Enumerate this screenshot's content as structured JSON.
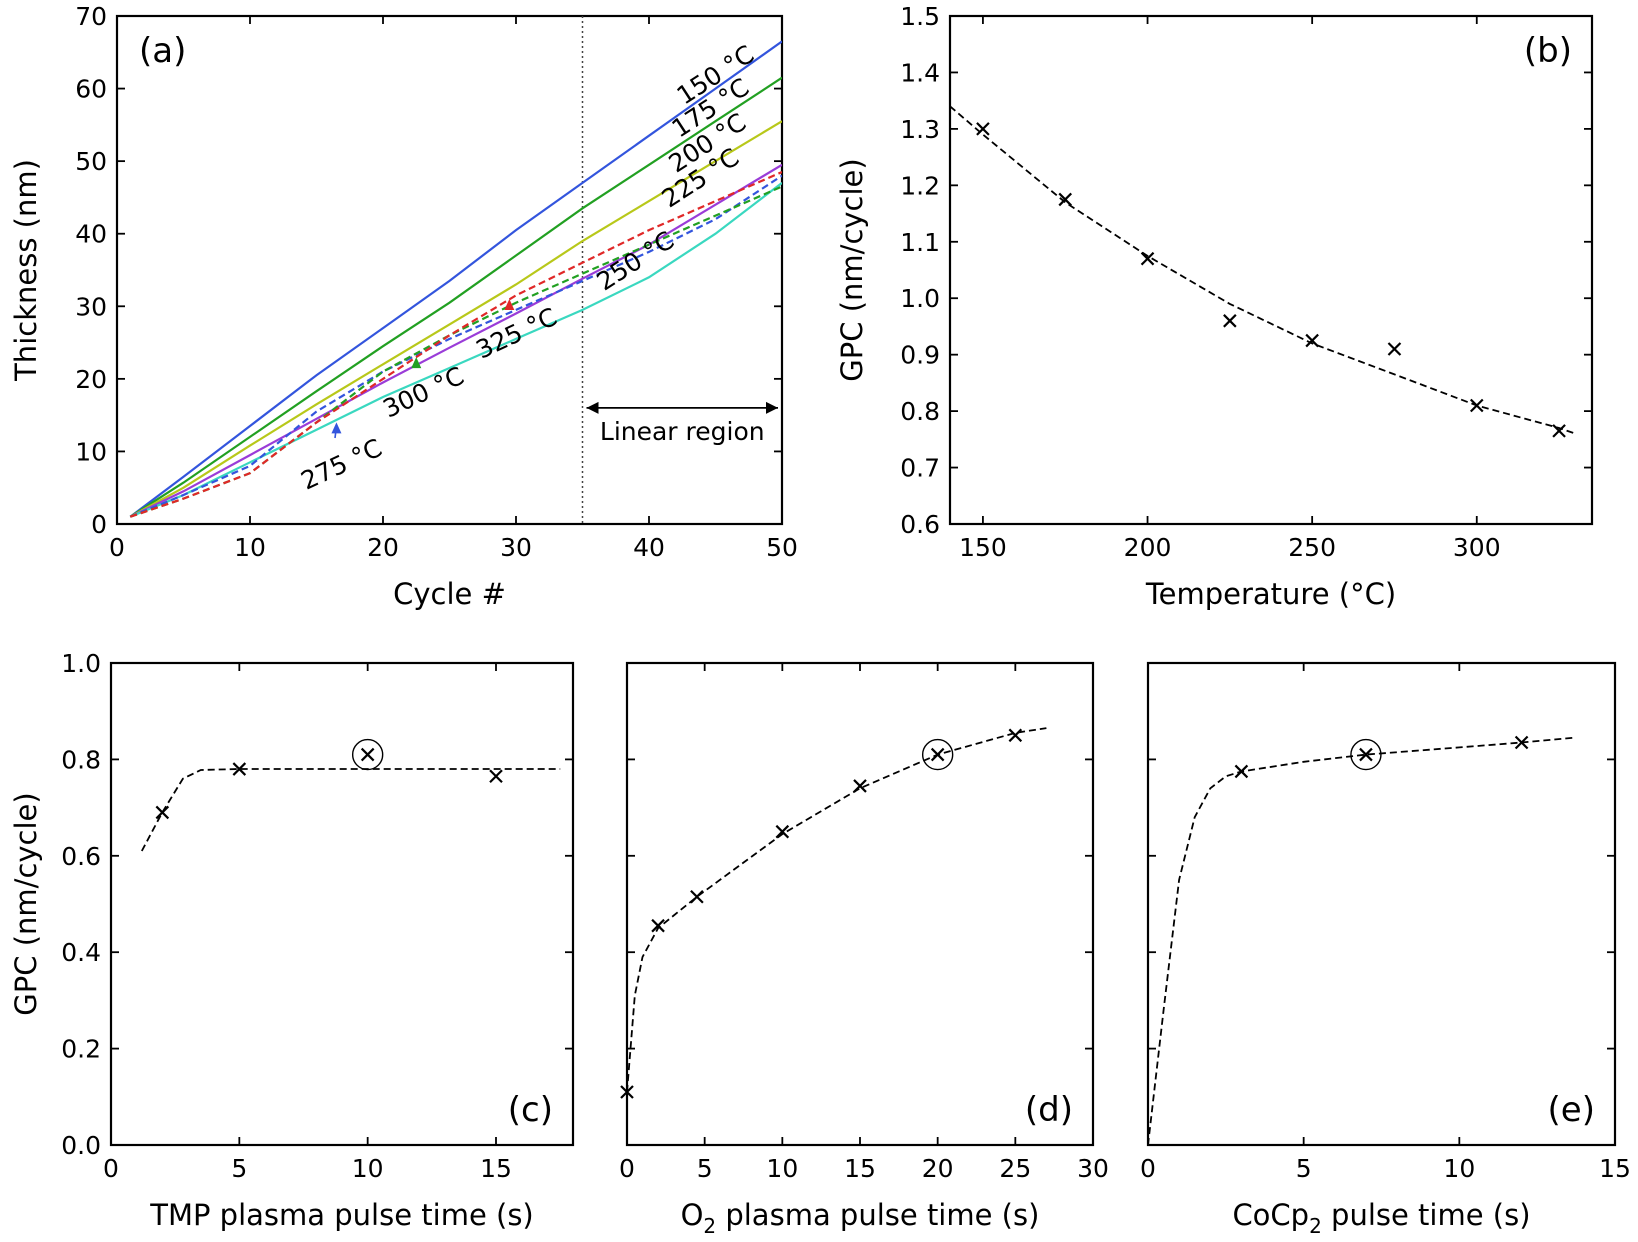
{
  "chart_data": [
    {
      "panel": "(a)",
      "type": "line",
      "xlabel": "Cycle #",
      "ylabel": "Thickness (nm)",
      "xlim": [
        0,
        50
      ],
      "ylim": [
        0,
        70
      ],
      "xticks": [
        0,
        10,
        20,
        30,
        40,
        50
      ],
      "yticks": [
        0,
        10,
        20,
        30,
        40,
        50,
        60,
        70
      ],
      "vline": 35,
      "region_label": "Linear region",
      "series": [
        {
          "name": "150 °C",
          "color": "#3355dd",
          "dash": false,
          "x": [
            1,
            5,
            10,
            15,
            20,
            25,
            30,
            35,
            40,
            45,
            50
          ],
          "y": [
            1,
            6.5,
            13.5,
            20.5,
            27,
            33.5,
            40.5,
            47,
            53.5,
            60,
            66.5
          ]
        },
        {
          "name": "175 °C",
          "color": "#22a022",
          "dash": false,
          "x": [
            1,
            5,
            10,
            15,
            20,
            25,
            30,
            35,
            40,
            45,
            50
          ],
          "y": [
            1,
            5.7,
            12,
            18.3,
            24.5,
            30.5,
            37,
            43.5,
            49.5,
            55.5,
            61.5
          ]
        },
        {
          "name": "200 °C",
          "color": "#b8c81a",
          "dash": false,
          "x": [
            1,
            5,
            10,
            15,
            20,
            25,
            30,
            35,
            40,
            45,
            50
          ],
          "y": [
            1,
            5,
            10.8,
            16.5,
            22,
            27.5,
            33,
            39,
            44.5,
            50,
            55.5
          ]
        },
        {
          "name": "225 °C",
          "color": "#9a3cd8",
          "dash": false,
          "x": [
            1,
            5,
            10,
            15,
            20,
            25,
            30,
            35,
            40,
            45,
            50
          ],
          "y": [
            1,
            4.5,
            9.5,
            14.5,
            19.5,
            24.3,
            29,
            33.8,
            38.5,
            44,
            49.5
          ]
        },
        {
          "name": "250 °C",
          "color": "#3ad8c0",
          "dash": false,
          "x": [
            1,
            5,
            10,
            15,
            20,
            25,
            30,
            35,
            40,
            45,
            50
          ],
          "y": [
            1,
            4,
            8.5,
            13,
            17.5,
            21.5,
            25.5,
            29.5,
            34,
            40,
            47
          ]
        },
        {
          "name": "275 °C",
          "color": "#3355dd",
          "dash": true,
          "x": [
            1,
            5,
            10,
            15,
            20,
            25,
            30,
            35,
            40,
            45,
            50
          ],
          "y": [
            1,
            4,
            8,
            15.5,
            21,
            25.5,
            29.5,
            33.5,
            37.5,
            42,
            48
          ]
        },
        {
          "name": "300 °C",
          "color": "#22a022",
          "dash": true,
          "x": [
            1,
            5,
            10,
            15,
            20,
            25,
            30,
            35,
            40,
            45,
            50
          ],
          "y": [
            1,
            3.5,
            7,
            14,
            21,
            26,
            30.5,
            34.5,
            38.5,
            42.5,
            46.5
          ]
        },
        {
          "name": "325 °C",
          "color": "#e02828",
          "dash": true,
          "x": [
            1,
            5,
            10,
            15,
            20,
            25,
            30,
            35,
            40,
            45,
            50
          ],
          "y": [
            1,
            3.5,
            7,
            14,
            20,
            26,
            31.5,
            36,
            40.5,
            44.5,
            48.5
          ]
        }
      ],
      "annotations": [
        {
          "text": "275 °C",
          "color": "#3355dd",
          "target": [
            16.5,
            14
          ]
        },
        {
          "text": "300 °C",
          "color": "#22a022",
          "target": [
            22.5,
            23
          ]
        },
        {
          "text": "325 °C",
          "color": "#e02828",
          "target": [
            29.5,
            31
          ]
        }
      ]
    },
    {
      "panel": "(b)",
      "type": "scatter",
      "xlabel": "Temperature (°C)",
      "ylabel": "GPC (nm/cycle)",
      "xlim": [
        140,
        335
      ],
      "ylim": [
        0.6,
        1.5
      ],
      "xticks": [
        150,
        200,
        250,
        300
      ],
      "yticks": [
        0.6,
        0.7,
        0.8,
        0.9,
        1.0,
        1.1,
        1.2,
        1.3,
        1.4,
        1.5
      ],
      "ytick_decimals": 1,
      "x": [
        150,
        175,
        200,
        225,
        250,
        275,
        300,
        325
      ],
      "y": [
        1.3,
        1.175,
        1.07,
        0.96,
        0.925,
        0.91,
        0.81,
        0.765
      ],
      "fit": {
        "x": [
          140,
          150,
          175,
          200,
          225,
          250,
          275,
          300,
          325,
          330
        ],
        "y": [
          1.34,
          1.29,
          1.17,
          1.075,
          0.99,
          0.92,
          0.865,
          0.81,
          0.77,
          0.76
        ]
      }
    },
    {
      "panel": "(c)",
      "type": "scatter",
      "xlabel": "TMP plasma pulse time (s)",
      "ylabel": "GPC (nm/cycle)",
      "xlim": [
        0,
        18
      ],
      "ylim": [
        0,
        1.0
      ],
      "xticks": [
        0,
        5,
        10,
        15
      ],
      "yticks": [
        0.0,
        0.2,
        0.4,
        0.6,
        0.8,
        1.0
      ],
      "ytick_decimals": 1,
      "x": [
        2,
        5,
        10,
        15
      ],
      "y": [
        0.69,
        0.78,
        0.81,
        0.765
      ],
      "circled_index": 2,
      "fit": {
        "x": [
          1.2,
          2,
          2.8,
          3.5,
          5,
          10,
          15,
          17.5
        ],
        "y": [
          0.61,
          0.69,
          0.76,
          0.778,
          0.78,
          0.78,
          0.78,
          0.78
        ]
      }
    },
    {
      "panel": "(d)",
      "type": "scatter",
      "xlabel": "O₂ plasma pulse time (s)",
      "xlabel_main": "O",
      "xlabel_sub": "2",
      "xlabel_rest": " plasma pulse time (s)",
      "ylabel": "",
      "xlim": [
        0,
        30
      ],
      "ylim": [
        0,
        1.0
      ],
      "xticks": [
        0,
        5,
        10,
        15,
        20,
        25,
        30
      ],
      "x": [
        0,
        2,
        4.5,
        10,
        15,
        20,
        25
      ],
      "y": [
        0.11,
        0.455,
        0.515,
        0.65,
        0.745,
        0.81,
        0.85
      ],
      "circled_index": 5,
      "fit": {
        "x": [
          0,
          0.5,
          1,
          2,
          4.5,
          10,
          15,
          20,
          25,
          27
        ],
        "y": [
          0.11,
          0.31,
          0.39,
          0.45,
          0.515,
          0.645,
          0.74,
          0.81,
          0.855,
          0.865
        ]
      }
    },
    {
      "panel": "(e)",
      "type": "scatter",
      "xlabel": "CoCp₂ pulse time (s)",
      "xlabel_main": "CoCp",
      "xlabel_sub": "2",
      "xlabel_rest": " pulse time (s)",
      "ylabel": "",
      "xlim": [
        0,
        15
      ],
      "ylim": [
        0,
        1.0
      ],
      "xticks": [
        0,
        5,
        10,
        15
      ],
      "x": [
        3,
        7,
        12
      ],
      "y": [
        0.775,
        0.81,
        0.835
      ],
      "circled_index": 1,
      "fit": {
        "x": [
          0,
          0.5,
          1,
          1.5,
          2,
          2.5,
          3,
          5,
          7,
          10,
          12,
          13.7
        ],
        "y": [
          0,
          0.28,
          0.55,
          0.68,
          0.74,
          0.765,
          0.775,
          0.795,
          0.81,
          0.825,
          0.835,
          0.845
        ]
      }
    }
  ]
}
